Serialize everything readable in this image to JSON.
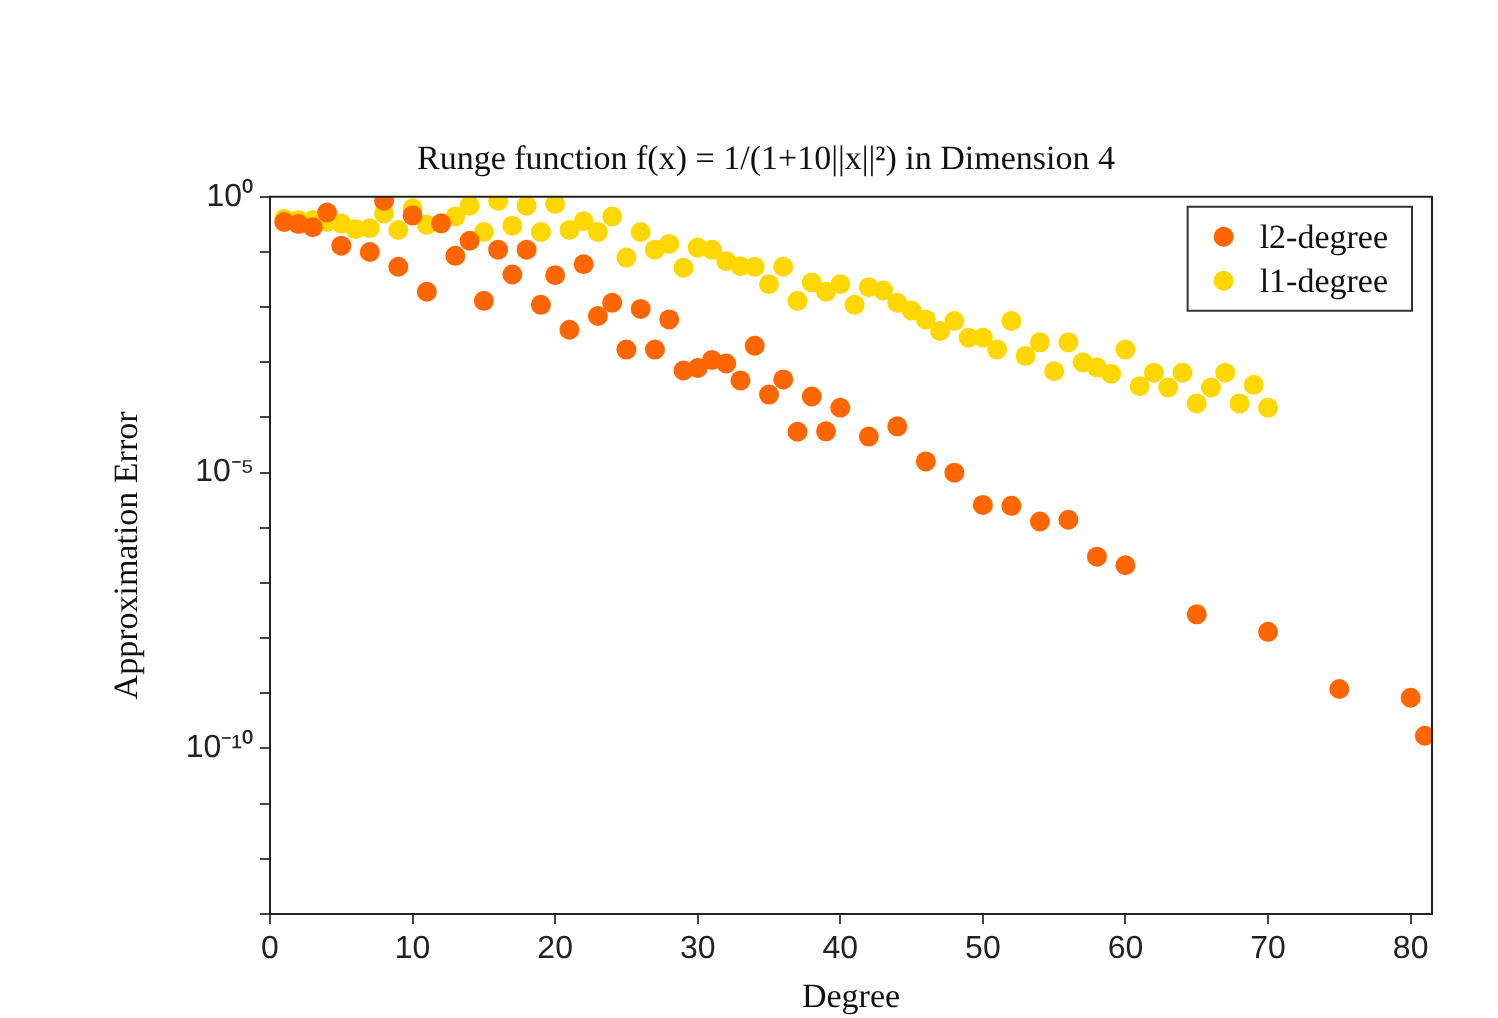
{
  "chart_data": {
    "type": "scatter",
    "title": "Runge function f(x) = 1/(1+10||x||²) in Dimension 4",
    "xlabel": "Degree",
    "ylabel": "Approximation Error",
    "log": "y",
    "marker": "circle",
    "legend": "top right",
    "xlim": [
      0,
      81.5
    ],
    "xticks": [
      0,
      10,
      20,
      30,
      40,
      50,
      60,
      70,
      80
    ],
    "ylim": [
      1e-13,
      1
    ],
    "yticks": [
      {
        "value": 1,
        "label": "10⁰"
      },
      {
        "value": 0.1,
        "label": null
      },
      {
        "value": 0.01,
        "label": null
      },
      {
        "value": 0.001,
        "label": null
      },
      {
        "value": 0.0001,
        "label": null
      },
      {
        "value": 1e-05,
        "label": "10⁻⁵"
      },
      {
        "value": 1e-06,
        "label": null
      },
      {
        "value": 1e-07,
        "label": null
      },
      {
        "value": 1e-08,
        "label": null
      },
      {
        "value": 1e-09,
        "label": null
      },
      {
        "value": 1e-10,
        "label": "10⁻¹⁰"
      },
      {
        "value": 1e-11,
        "label": null
      },
      {
        "value": 1e-12,
        "label": null
      },
      {
        "value": 1e-13,
        "label": null
      }
    ],
    "series": [
      {
        "name": "l2-degree",
        "color": "#ff6600",
        "x": [
          1,
          2,
          3,
          4,
          5,
          7,
          8,
          9,
          10,
          11,
          12,
          13,
          14,
          15,
          16,
          17,
          18,
          19,
          20,
          21,
          22,
          23,
          24,
          25,
          26,
          27,
          28,
          29,
          30,
          31,
          32,
          33,
          34,
          35,
          36,
          37,
          38,
          39,
          40,
          42,
          44,
          46,
          48,
          50,
          52,
          54,
          56,
          58,
          60,
          65,
          70,
          75,
          80,
          81
        ],
        "values": [
          0.35,
          0.32,
          0.28,
          0.52,
          0.13,
          0.1,
          0.85,
          0.054,
          0.46,
          0.019,
          0.33,
          0.085,
          0.16,
          0.013,
          0.11,
          0.039,
          0.11,
          0.011,
          0.038,
          0.0039,
          0.06,
          0.0069,
          0.012,
          0.0017,
          0.0093,
          0.0017,
          0.006,
          0.00071,
          0.00079,
          0.0011,
          0.00095,
          0.00047,
          0.002,
          0.00026,
          0.00049,
          5.5e-05,
          0.00024,
          5.6e-05,
          0.00015,
          4.5e-05,
          6.9e-05,
          1.6e-05,
          1e-05,
          2.6e-06,
          2.5e-06,
          1.3e-06,
          1.4e-06,
          3e-07,
          2.1e-07,
          2.7e-08,
          1.3e-08,
          1.2e-09,
          8.3e-10,
          1.7e-10
        ]
      },
      {
        "name": "l1-degree",
        "color": "#ffd700",
        "x": [
          1,
          2,
          3,
          4,
          5,
          6,
          7,
          8,
          9,
          10,
          11,
          13,
          14,
          15,
          16,
          17,
          18,
          19,
          20,
          21,
          22,
          23,
          24,
          25,
          26,
          27,
          28,
          29,
          30,
          31,
          32,
          33,
          34,
          35,
          36,
          37,
          38,
          39,
          40,
          41,
          42,
          43,
          44,
          45,
          46,
          47,
          48,
          49,
          50,
          51,
          52,
          53,
          54,
          55,
          56,
          57,
          58,
          59,
          60,
          61,
          62,
          63,
          64,
          65,
          66,
          67,
          68,
          69,
          70
        ],
        "values": [
          0.4,
          0.38,
          0.38,
          0.35,
          0.33,
          0.26,
          0.27,
          0.5,
          0.25,
          0.62,
          0.31,
          0.44,
          0.69,
          0.23,
          0.85,
          0.3,
          0.69,
          0.23,
          0.74,
          0.25,
          0.36,
          0.23,
          0.44,
          0.079,
          0.23,
          0.11,
          0.14,
          0.052,
          0.12,
          0.11,
          0.068,
          0.055,
          0.054,
          0.026,
          0.054,
          0.013,
          0.028,
          0.019,
          0.026,
          0.011,
          0.023,
          0.02,
          0.012,
          0.0087,
          0.006,
          0.0037,
          0.0056,
          0.0028,
          0.0028,
          0.0017,
          0.0056,
          0.0013,
          0.0023,
          0.00069,
          0.0023,
          0.001,
          0.00081,
          0.00062,
          0.0017,
          0.00037,
          0.00065,
          0.00035,
          0.00065,
          0.00018,
          0.00035,
          0.00065,
          0.00018,
          0.00039,
          0.00015
        ]
      }
    ]
  }
}
